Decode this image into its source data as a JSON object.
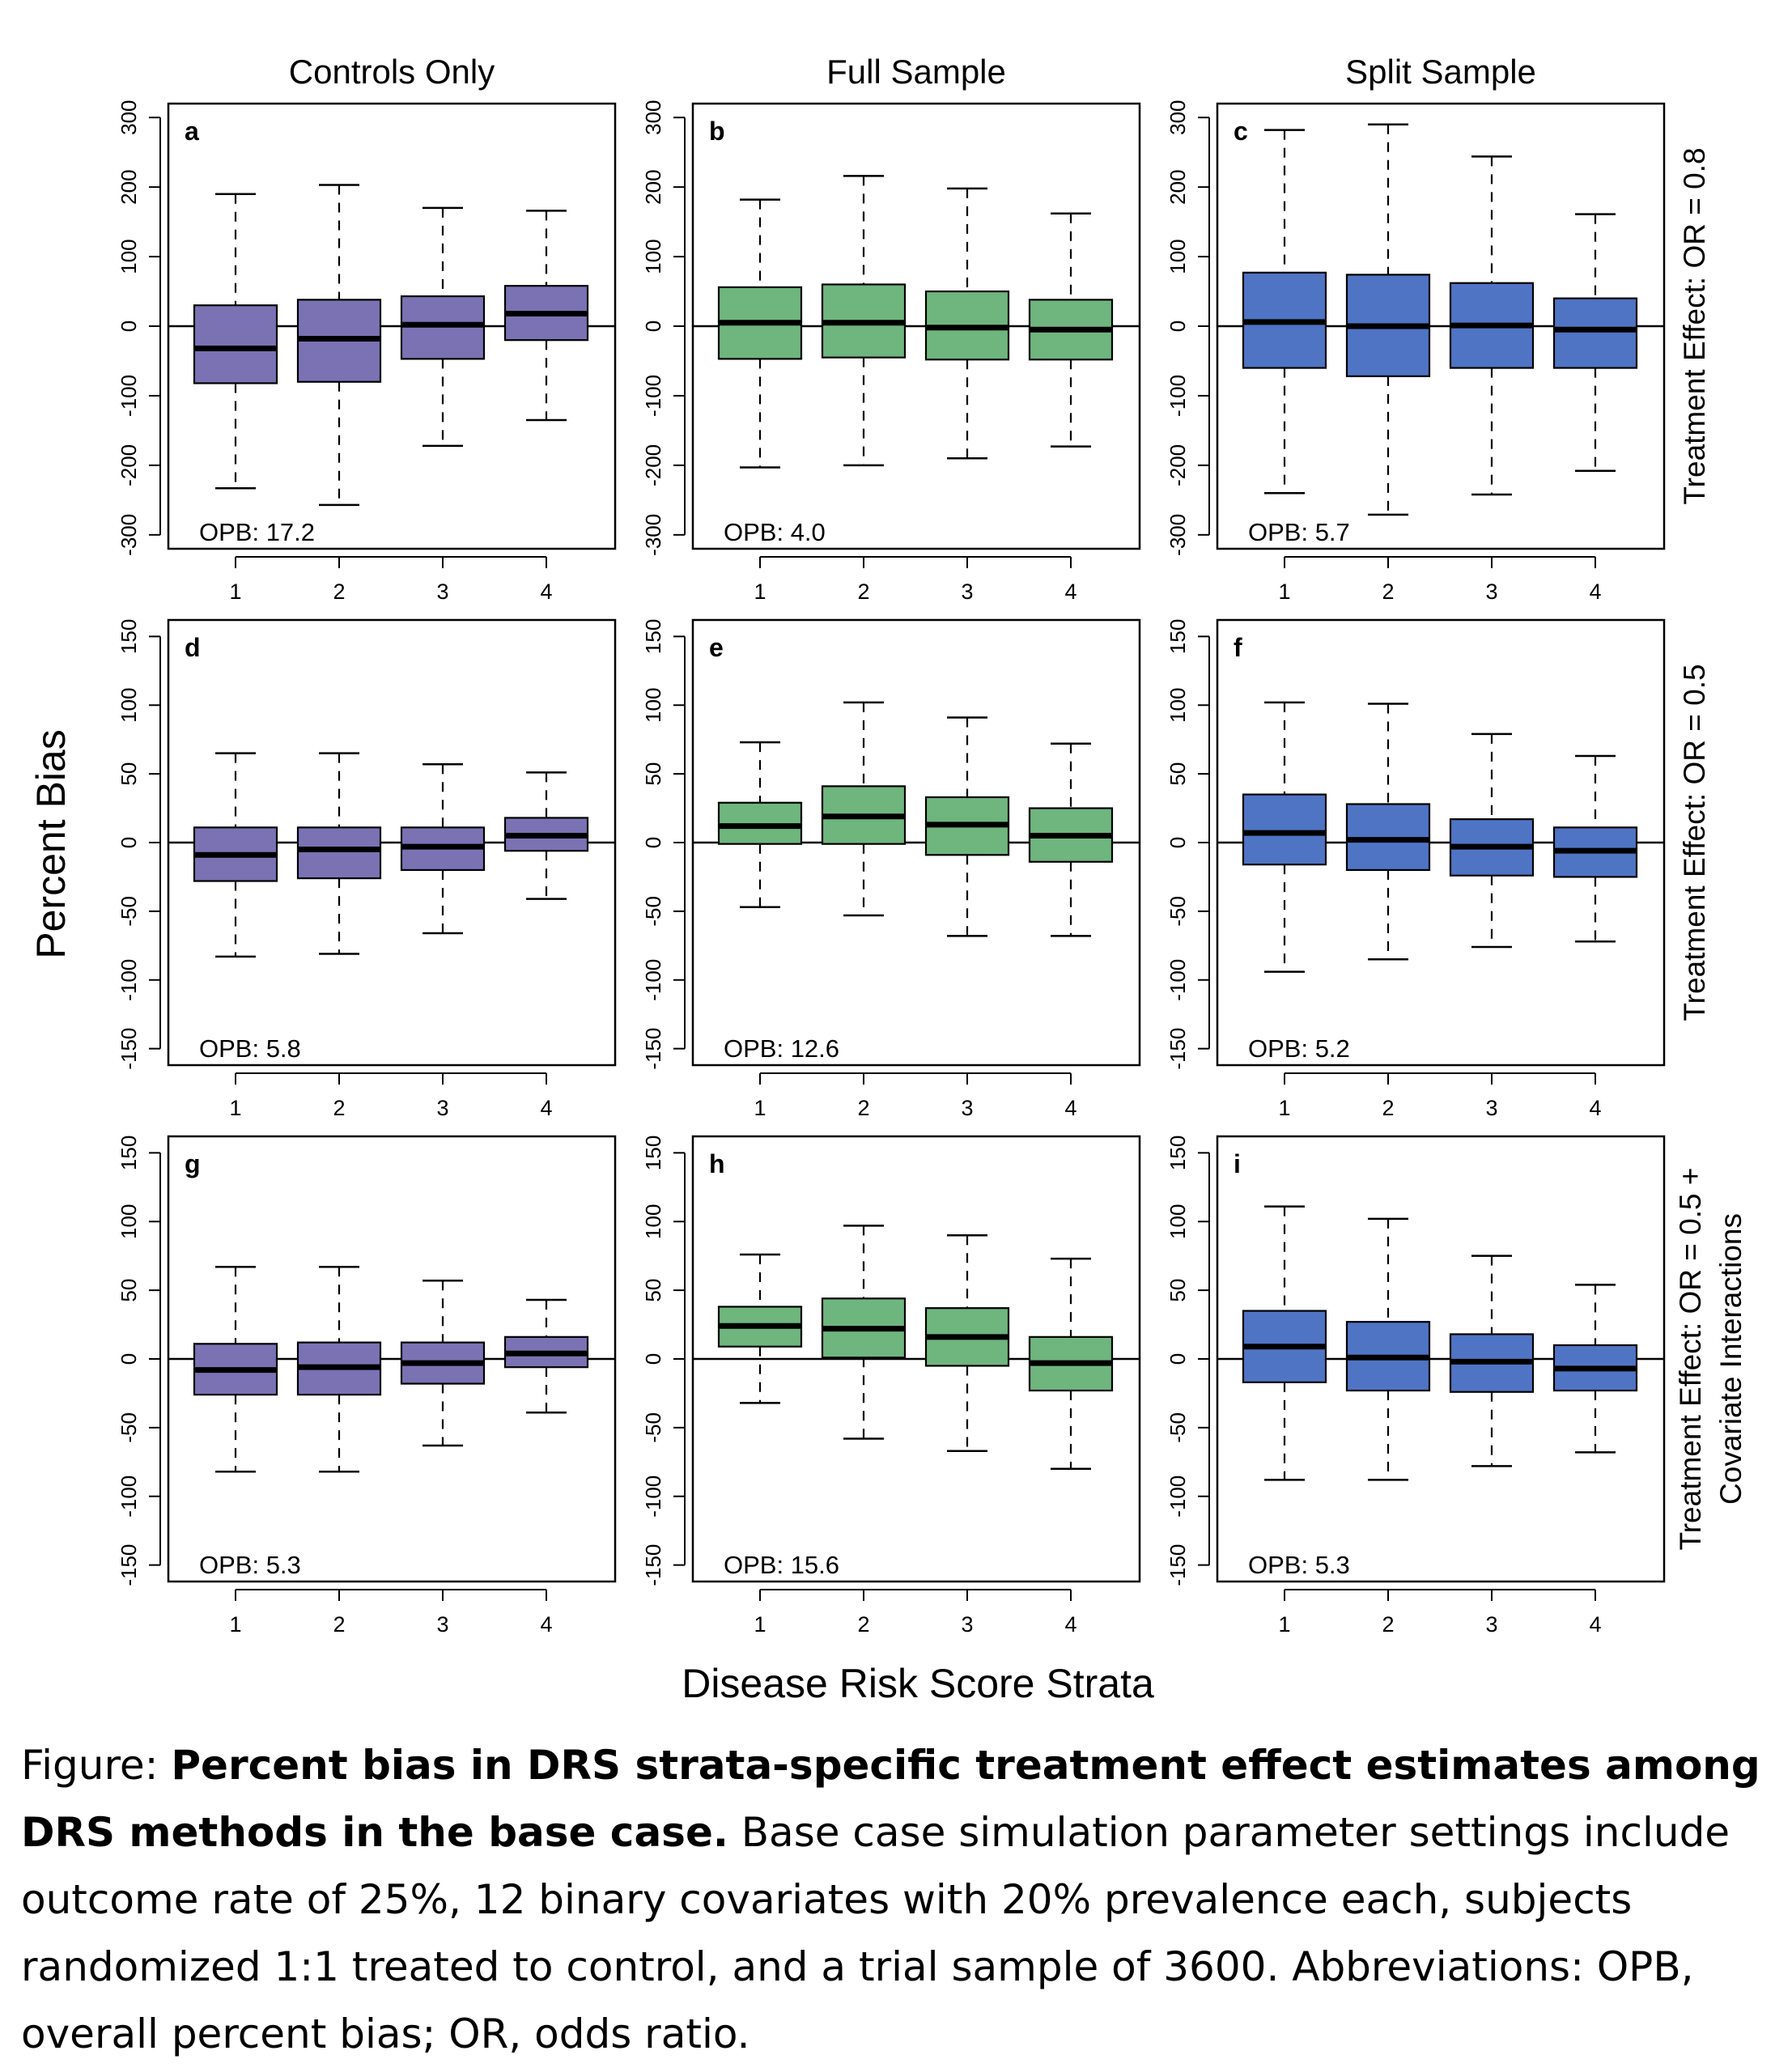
{
  "figure": {
    "column_titles": [
      "Controls Only",
      "Full Sample",
      "Split Sample"
    ],
    "row_labels": [
      [
        "Treatment Effect: OR = 0.8"
      ],
      [
        "Treatment Effect: OR = 0.5"
      ],
      [
        "Treatment Effect: OR = 0.5 +",
        "Covariate Interactions"
      ]
    ],
    "shared_ylabel": "Percent Bias",
    "shared_xlabel": "Disease Risk Score Strata",
    "colors": {
      "controls": "#7b72b4",
      "full": "#6fb57e",
      "split": "#4f74c4"
    }
  },
  "caption": {
    "prefix": "Figure: ",
    "bold": "Percent bias in DRS strata-specific treatment effect estimates among DRS methods in the base case.",
    "rest": " Base case simulation parameter settings include outcome rate of 25%, 12 binary covariates with 20% prevalence each, subjects randomized 1:1 treated to control, and a trial sample of 3600.  Abbreviations: OPB, overall percent bias; OR, odds ratio."
  },
  "chart_data": [
    {
      "type": "box",
      "panel": "a",
      "column": "Controls Only",
      "row_label": "Treatment Effect: OR = 0.8",
      "annotation": "OPB: 17.2",
      "ylim": [
        -320,
        320
      ],
      "yticks": [
        -300,
        -200,
        -100,
        0,
        100,
        200,
        300
      ],
      "categories": [
        "1",
        "2",
        "3",
        "4"
      ],
      "color": "#7b72b4",
      "boxes": [
        {
          "whislo": -233,
          "q1": -82,
          "med": -32,
          "q3": 30,
          "whishi": 190
        },
        {
          "whislo": -257,
          "q1": -80,
          "med": -18,
          "q3": 38,
          "whishi": 203
        },
        {
          "whislo": -172,
          "q1": -47,
          "med": 2,
          "q3": 43,
          "whishi": 170
        },
        {
          "whislo": -135,
          "q1": -20,
          "med": 18,
          "q3": 58,
          "whishi": 166
        }
      ]
    },
    {
      "type": "box",
      "panel": "b",
      "column": "Full Sample",
      "row_label": "Treatment Effect: OR = 0.8",
      "annotation": "OPB: 4.0",
      "ylim": [
        -320,
        320
      ],
      "yticks": [
        -300,
        -200,
        -100,
        0,
        100,
        200,
        300
      ],
      "categories": [
        "1",
        "2",
        "3",
        "4"
      ],
      "color": "#6fb57e",
      "boxes": [
        {
          "whislo": -203,
          "q1": -47,
          "med": 5,
          "q3": 56,
          "whishi": 182
        },
        {
          "whislo": -200,
          "q1": -45,
          "med": 5,
          "q3": 60,
          "whishi": 216
        },
        {
          "whislo": -190,
          "q1": -48,
          "med": -2,
          "q3": 50,
          "whishi": 198
        },
        {
          "whislo": -173,
          "q1": -48,
          "med": -5,
          "q3": 38,
          "whishi": 162
        }
      ]
    },
    {
      "type": "box",
      "panel": "c",
      "column": "Split Sample",
      "row_label": "Treatment Effect: OR = 0.8",
      "annotation": "OPB: 5.7",
      "ylim": [
        -320,
        320
      ],
      "yticks": [
        -300,
        -200,
        -100,
        0,
        100,
        200,
        300
      ],
      "categories": [
        "1",
        "2",
        "3",
        "4"
      ],
      "color": "#4f74c4",
      "boxes": [
        {
          "whislo": -240,
          "q1": -60,
          "med": 6,
          "q3": 77,
          "whishi": 282
        },
        {
          "whislo": -271,
          "q1": -72,
          "med": 0,
          "q3": 74,
          "whishi": 290
        },
        {
          "whislo": -242,
          "q1": -60,
          "med": 1,
          "q3": 62,
          "whishi": 244
        },
        {
          "whislo": -208,
          "q1": -60,
          "med": -5,
          "q3": 40,
          "whishi": 161
        }
      ]
    },
    {
      "type": "box",
      "panel": "d",
      "column": "Controls Only",
      "row_label": "Treatment Effect: OR = 0.5",
      "annotation": "OPB: 5.8",
      "ylim": [
        -162,
        162
      ],
      "yticks": [
        -150,
        -100,
        -50,
        0,
        50,
        100,
        150
      ],
      "categories": [
        "1",
        "2",
        "3",
        "4"
      ],
      "color": "#7b72b4",
      "boxes": [
        {
          "whislo": -83,
          "q1": -28,
          "med": -9,
          "q3": 11,
          "whishi": 65
        },
        {
          "whislo": -81,
          "q1": -26,
          "med": -5,
          "q3": 11,
          "whishi": 65
        },
        {
          "whislo": -66,
          "q1": -20,
          "med": -3,
          "q3": 11,
          "whishi": 57
        },
        {
          "whislo": -41,
          "q1": -6,
          "med": 5,
          "q3": 18,
          "whishi": 51
        }
      ]
    },
    {
      "type": "box",
      "panel": "e",
      "column": "Full Sample",
      "row_label": "Treatment Effect: OR = 0.5",
      "annotation": "OPB: 12.6",
      "ylim": [
        -162,
        162
      ],
      "yticks": [
        -150,
        -100,
        -50,
        0,
        50,
        100,
        150
      ],
      "categories": [
        "1",
        "2",
        "3",
        "4"
      ],
      "color": "#6fb57e",
      "boxes": [
        {
          "whislo": -47,
          "q1": -1,
          "med": 12,
          "q3": 29,
          "whishi": 73
        },
        {
          "whislo": -53,
          "q1": -1,
          "med": 19,
          "q3": 41,
          "whishi": 102
        },
        {
          "whislo": -68,
          "q1": -9,
          "med": 13,
          "q3": 33,
          "whishi": 91
        },
        {
          "whislo": -68,
          "q1": -14,
          "med": 5,
          "q3": 25,
          "whishi": 72
        }
      ]
    },
    {
      "type": "box",
      "panel": "f",
      "column": "Split Sample",
      "row_label": "Treatment Effect: OR = 0.5",
      "annotation": "OPB: 5.2",
      "ylim": [
        -162,
        162
      ],
      "yticks": [
        -150,
        -100,
        -50,
        0,
        50,
        100,
        150
      ],
      "categories": [
        "1",
        "2",
        "3",
        "4"
      ],
      "color": "#4f74c4",
      "boxes": [
        {
          "whislo": -94,
          "q1": -16,
          "med": 7,
          "q3": 35,
          "whishi": 102
        },
        {
          "whislo": -85,
          "q1": -20,
          "med": 2,
          "q3": 28,
          "whishi": 101
        },
        {
          "whislo": -76,
          "q1": -24,
          "med": -3,
          "q3": 17,
          "whishi": 79
        },
        {
          "whislo": -72,
          "q1": -25,
          "med": -6,
          "q3": 11,
          "whishi": 63
        }
      ]
    },
    {
      "type": "box",
      "panel": "g",
      "column": "Controls Only",
      "row_label": "Treatment Effect: OR = 0.5 + Covariate Interactions",
      "annotation": "OPB: 5.3",
      "ylim": [
        -162,
        162
      ],
      "yticks": [
        -150,
        -100,
        -50,
        0,
        50,
        100,
        150
      ],
      "categories": [
        "1",
        "2",
        "3",
        "4"
      ],
      "color": "#7b72b4",
      "boxes": [
        {
          "whislo": -82,
          "q1": -26,
          "med": -8,
          "q3": 11,
          "whishi": 67
        },
        {
          "whislo": -82,
          "q1": -26,
          "med": -6,
          "q3": 12,
          "whishi": 67
        },
        {
          "whislo": -63,
          "q1": -18,
          "med": -3,
          "q3": 12,
          "whishi": 57
        },
        {
          "whislo": -39,
          "q1": -6,
          "med": 4,
          "q3": 16,
          "whishi": 43
        }
      ]
    },
    {
      "type": "box",
      "panel": "h",
      "column": "Full Sample",
      "row_label": "Treatment Effect: OR = 0.5 + Covariate Interactions",
      "annotation": "OPB: 15.6",
      "ylim": [
        -162,
        162
      ],
      "yticks": [
        -150,
        -100,
        -50,
        0,
        50,
        100,
        150
      ],
      "categories": [
        "1",
        "2",
        "3",
        "4"
      ],
      "color": "#6fb57e",
      "boxes": [
        {
          "whislo": -32,
          "q1": 9,
          "med": 24,
          "q3": 38,
          "whishi": 76
        },
        {
          "whislo": -58,
          "q1": 1,
          "med": 22,
          "q3": 44,
          "whishi": 97
        },
        {
          "whislo": -67,
          "q1": -5,
          "med": 16,
          "q3": 37,
          "whishi": 90
        },
        {
          "whislo": -80,
          "q1": -23,
          "med": -3,
          "q3": 16,
          "whishi": 73
        }
      ]
    },
    {
      "type": "box",
      "panel": "i",
      "column": "Split Sample",
      "row_label": "Treatment Effect: OR = 0.5 + Covariate Interactions",
      "annotation": "OPB: 5.3",
      "ylim": [
        -162,
        162
      ],
      "yticks": [
        -150,
        -100,
        -50,
        0,
        50,
        100,
        150
      ],
      "categories": [
        "1",
        "2",
        "3",
        "4"
      ],
      "color": "#4f74c4",
      "boxes": [
        {
          "whislo": -88,
          "q1": -17,
          "med": 9,
          "q3": 35,
          "whishi": 111
        },
        {
          "whislo": -88,
          "q1": -23,
          "med": 1,
          "q3": 27,
          "whishi": 102
        },
        {
          "whislo": -78,
          "q1": -24,
          "med": -2,
          "q3": 18,
          "whishi": 75
        },
        {
          "whislo": -68,
          "q1": -23,
          "med": -7,
          "q3": 10,
          "whishi": 54
        }
      ]
    }
  ]
}
